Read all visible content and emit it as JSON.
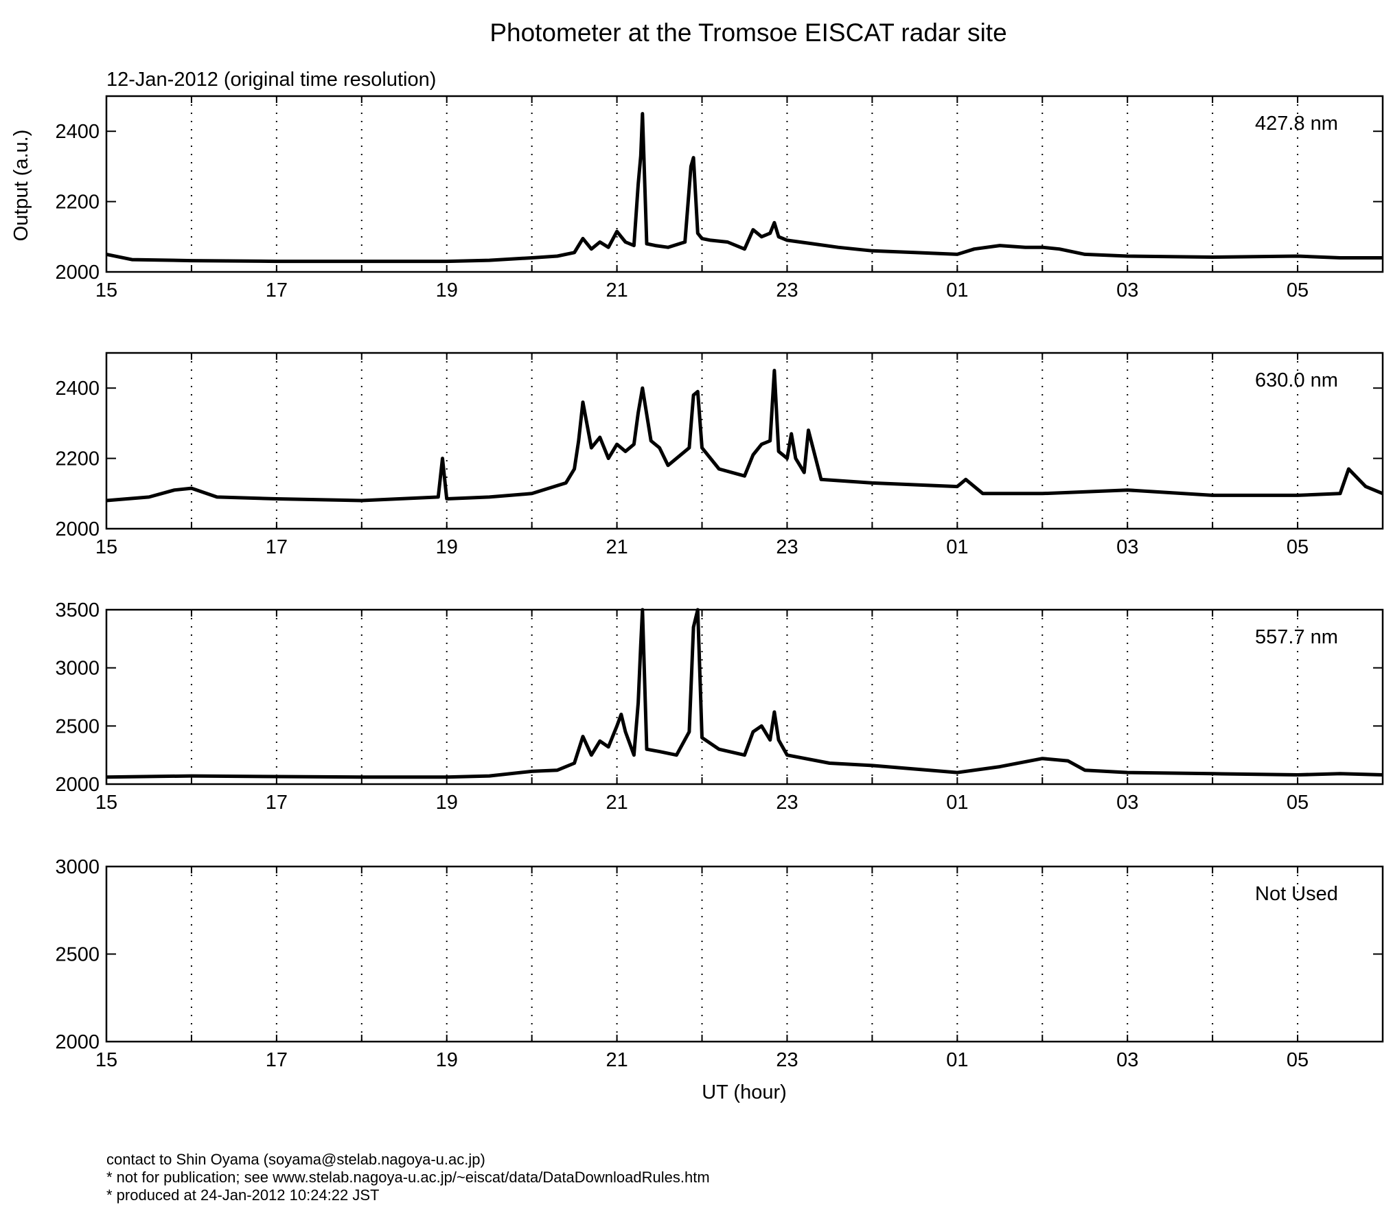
{
  "title": "Photometer at the Tromsoe EISCAT radar site",
  "subtitle": "12-Jan-2012 (original time resolution)",
  "ylabel": "Output (a.u.)",
  "xlabel": "UT (hour)",
  "footer": {
    "contact": "contact to Shin Oyama (soyama@stelab.nagoya-u.ac.jp)",
    "notice": "* not for publication; see www.stelab.nagoya-u.ac.jp/~eiscat/data/DataDownloadRules.htm",
    "produced": "* produced at 24-Jan-2012 10:24:22 JST"
  },
  "chart_data": [
    {
      "type": "line",
      "label": "427.8 nm",
      "x_range": [
        15,
        30
      ],
      "x_tick_labels": [
        "15",
        "17",
        "19",
        "21",
        "23",
        "01",
        "03",
        "05"
      ],
      "ylim": [
        2000,
        2500
      ],
      "y_ticks": [
        2000,
        2200,
        2400
      ],
      "grid": "dotted vertical at every hour",
      "line_color": "#000000",
      "series": [
        {
          "x": [
            15,
            15.3,
            16,
            17,
            18,
            19,
            19.5,
            20,
            20.3,
            20.5,
            20.6,
            20.7,
            20.8,
            20.9,
            21,
            21.05,
            21.1,
            21.2,
            21.25,
            21.28,
            21.3,
            21.35,
            21.45,
            21.6,
            21.8,
            21.87,
            21.9,
            21.95,
            22,
            22.1,
            22.3,
            22.5,
            22.6,
            22.7,
            22.8,
            22.85,
            22.9,
            23,
            23.3,
            23.6,
            24,
            24.5,
            25,
            25.2,
            25.5,
            25.8,
            26,
            26.2,
            26.5,
            27,
            28,
            29,
            29.5,
            30
          ],
          "y": [
            2050,
            2035,
            2032,
            2030,
            2030,
            2030,
            2033,
            2040,
            2045,
            2055,
            2095,
            2065,
            2085,
            2070,
            2115,
            2100,
            2085,
            2075,
            2250,
            2330,
            2450,
            2080,
            2075,
            2070,
            2085,
            2300,
            2325,
            2110,
            2095,
            2090,
            2085,
            2065,
            2120,
            2100,
            2110,
            2140,
            2100,
            2090,
            2080,
            2070,
            2060,
            2055,
            2050,
            2065,
            2075,
            2070,
            2070,
            2065,
            2050,
            2045,
            2042,
            2045,
            2040,
            2040
          ]
        }
      ]
    },
    {
      "type": "line",
      "label": "630.0 nm",
      "x_range": [
        15,
        30
      ],
      "x_tick_labels": [
        "15",
        "17",
        "19",
        "21",
        "23",
        "01",
        "03",
        "05"
      ],
      "ylim": [
        2000,
        2500
      ],
      "y_ticks": [
        2000,
        2200,
        2400
      ],
      "grid": "dotted vertical at every hour",
      "line_color": "#000000",
      "series": [
        {
          "x": [
            15,
            15.5,
            15.8,
            16,
            16.3,
            17,
            18,
            18.9,
            18.95,
            19,
            19.5,
            20,
            20.4,
            20.5,
            20.55,
            20.6,
            20.7,
            20.8,
            20.9,
            21,
            21.1,
            21.2,
            21.25,
            21.3,
            21.4,
            21.5,
            21.6,
            21.7,
            21.85,
            21.9,
            21.95,
            22,
            22.2,
            22.5,
            22.6,
            22.7,
            22.8,
            22.85,
            22.9,
            23,
            23.05,
            23.1,
            23.2,
            23.25,
            23.4,
            24,
            25,
            25.1,
            25.3,
            26,
            27,
            28,
            29,
            29.5,
            29.6,
            29.8,
            30
          ],
          "y": [
            2080,
            2090,
            2110,
            2115,
            2090,
            2085,
            2080,
            2090,
            2200,
            2085,
            2090,
            2100,
            2130,
            2170,
            2250,
            2360,
            2230,
            2260,
            2200,
            2240,
            2220,
            2240,
            2330,
            2400,
            2250,
            2230,
            2180,
            2200,
            2230,
            2380,
            2390,
            2230,
            2170,
            2150,
            2210,
            2240,
            2250,
            2450,
            2220,
            2200,
            2270,
            2200,
            2160,
            2280,
            2140,
            2130,
            2120,
            2140,
            2100,
            2100,
            2110,
            2095,
            2095,
            2100,
            2170,
            2120,
            2100
          ]
        }
      ]
    },
    {
      "type": "line",
      "label": "557.7 nm",
      "x_range": [
        15,
        30
      ],
      "x_tick_labels": [
        "15",
        "17",
        "19",
        "21",
        "23",
        "01",
        "03",
        "05"
      ],
      "ylim": [
        2000,
        3500
      ],
      "y_ticks": [
        2000,
        2500,
        3000,
        3500
      ],
      "grid": "dotted vertical at every hour",
      "line_color": "#000000",
      "series": [
        {
          "x": [
            15,
            16,
            17,
            18,
            19,
            19.5,
            20,
            20.3,
            20.5,
            20.6,
            20.7,
            20.8,
            20.9,
            21,
            21.05,
            21.1,
            21.2,
            21.25,
            21.28,
            21.3,
            21.35,
            21.5,
            21.7,
            21.85,
            21.9,
            21.95,
            22,
            22.2,
            22.5,
            22.6,
            22.7,
            22.8,
            22.85,
            22.9,
            23,
            23.5,
            24,
            25,
            25.5,
            26,
            26.3,
            26.5,
            27,
            28,
            29,
            29.5,
            30
          ],
          "y": [
            2060,
            2070,
            2065,
            2060,
            2060,
            2070,
            2110,
            2120,
            2180,
            2410,
            2250,
            2370,
            2320,
            2500,
            2600,
            2450,
            2250,
            2700,
            3200,
            3500,
            2300,
            2280,
            2250,
            2450,
            3350,
            3500,
            2400,
            2300,
            2250,
            2450,
            2500,
            2380,
            2620,
            2380,
            2250,
            2180,
            2160,
            2100,
            2150,
            2220,
            2200,
            2120,
            2100,
            2090,
            2080,
            2090,
            2080
          ]
        }
      ]
    },
    {
      "type": "line",
      "label": "Not Used",
      "x_range": [
        15,
        30
      ],
      "x_tick_labels": [
        "15",
        "17",
        "19",
        "21",
        "23",
        "01",
        "03",
        "05"
      ],
      "ylim": [
        2000,
        3000
      ],
      "y_ticks": [
        2000,
        2500,
        3000
      ],
      "grid": "dotted vertical at every hour",
      "series": []
    }
  ]
}
